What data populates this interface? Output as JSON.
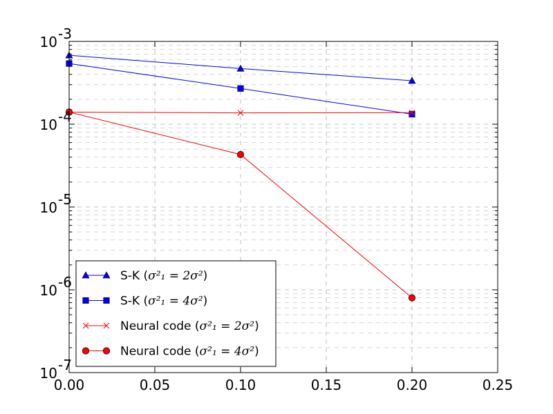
{
  "chart_data": {
    "type": "line",
    "title": "",
    "xlabel": "",
    "ylabel": "",
    "xscale": "linear",
    "yscale": "log",
    "xlim": [
      0.0,
      0.25
    ],
    "ylim": [
      1e-07,
      0.001
    ],
    "grid": true,
    "x_ticks": [
      0.0,
      0.05,
      0.1,
      0.15,
      0.2,
      0.25
    ],
    "x_tick_labels": [
      "0.00",
      "0.05",
      "0.10",
      "0.15",
      "0.20",
      "0.25"
    ],
    "y_ticks": [
      1e-07,
      1e-06,
      1e-05,
      0.0001,
      0.001
    ],
    "y_tick_labels": [
      {
        "base": "10",
        "exp": "-7"
      },
      {
        "base": "10",
        "exp": "-6"
      },
      {
        "base": "10",
        "exp": "-5"
      },
      {
        "base": "10",
        "exp": "-4"
      },
      {
        "base": "10",
        "exp": "-3"
      }
    ],
    "x": [
      0.0,
      0.1,
      0.2
    ],
    "legend_position": "lower-left",
    "series": [
      {
        "name": "S-K (σ1² = 2σ²)",
        "label_prefix": "S-K (",
        "label_math": "σ²₁ = 2σ²",
        "label_suffix": ")",
        "color": "#0000ff",
        "marker": "triangle",
        "values": [
          0.00068,
          0.00047,
          0.000335
        ]
      },
      {
        "name": "S-K (σ1² = 4σ²)",
        "label_prefix": "S-K (",
        "label_math": "σ²₁ = 4σ²",
        "label_suffix": ")",
        "color": "#0000ff",
        "marker": "square",
        "values": [
          0.00054,
          0.00027,
          0.000132
        ]
      },
      {
        "name": "Neural code (σ1² = 2σ²)",
        "label_prefix": "Neural code (",
        "label_math": "σ²₁ = 2σ²",
        "label_suffix": ")",
        "color": "#ff0000",
        "marker": "x",
        "values": [
          0.00014,
          0.000137,
          0.000138
        ]
      },
      {
        "name": "Neural code (σ1² = 4σ²)",
        "label_prefix": "Neural code (",
        "label_math": "σ²₁ = 4σ²",
        "label_suffix": ")",
        "color": "#ff0000",
        "marker": "circle",
        "values": [
          0.00014,
          4.3e-05,
          8e-07
        ]
      }
    ]
  }
}
